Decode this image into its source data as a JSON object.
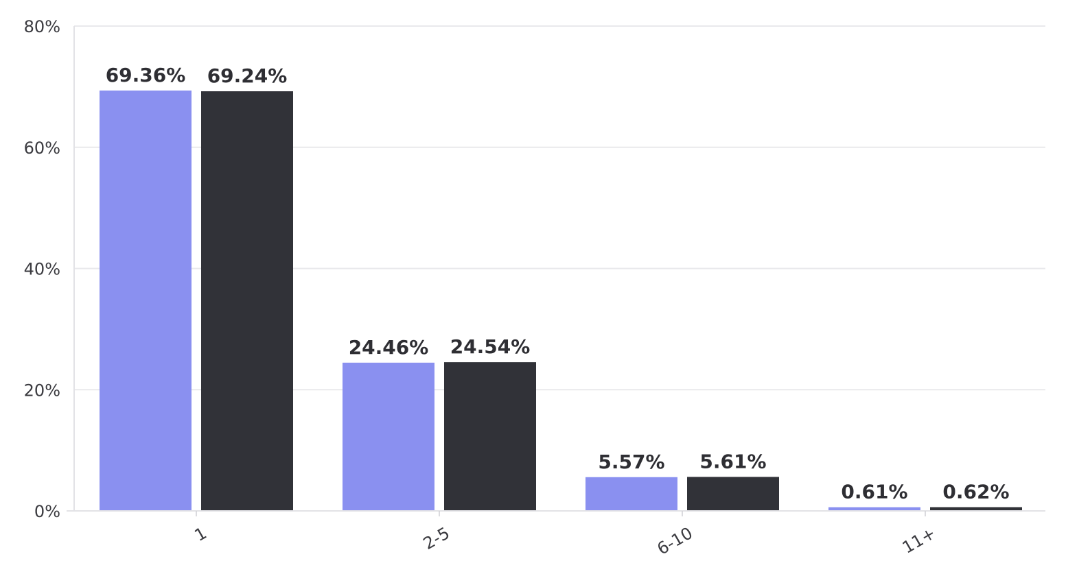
{
  "chart_data": {
    "type": "bar",
    "categories": [
      "1",
      "2-5",
      "6-10",
      "11+"
    ],
    "series": [
      {
        "color": "#8a90f0",
        "values": [
          69.36,
          24.46,
          5.57,
          0.61
        ],
        "labels": [
          "69.36%",
          "24.46%",
          "5.57%",
          "0.61%"
        ]
      },
      {
        "color": "#313238",
        "values": [
          69.24,
          24.54,
          5.61,
          0.62
        ],
        "labels": [
          "69.24%",
          "24.54%",
          "5.61%",
          "0.62%"
        ]
      }
    ],
    "y_ticks": [
      0,
      20,
      40,
      60,
      80
    ],
    "y_tick_labels": [
      "0%",
      "20%",
      "40%",
      "60%",
      "80%"
    ],
    "ylim": [
      0,
      80
    ],
    "grid": true,
    "legend": false,
    "title": "",
    "xlabel": "",
    "ylabel": ""
  }
}
